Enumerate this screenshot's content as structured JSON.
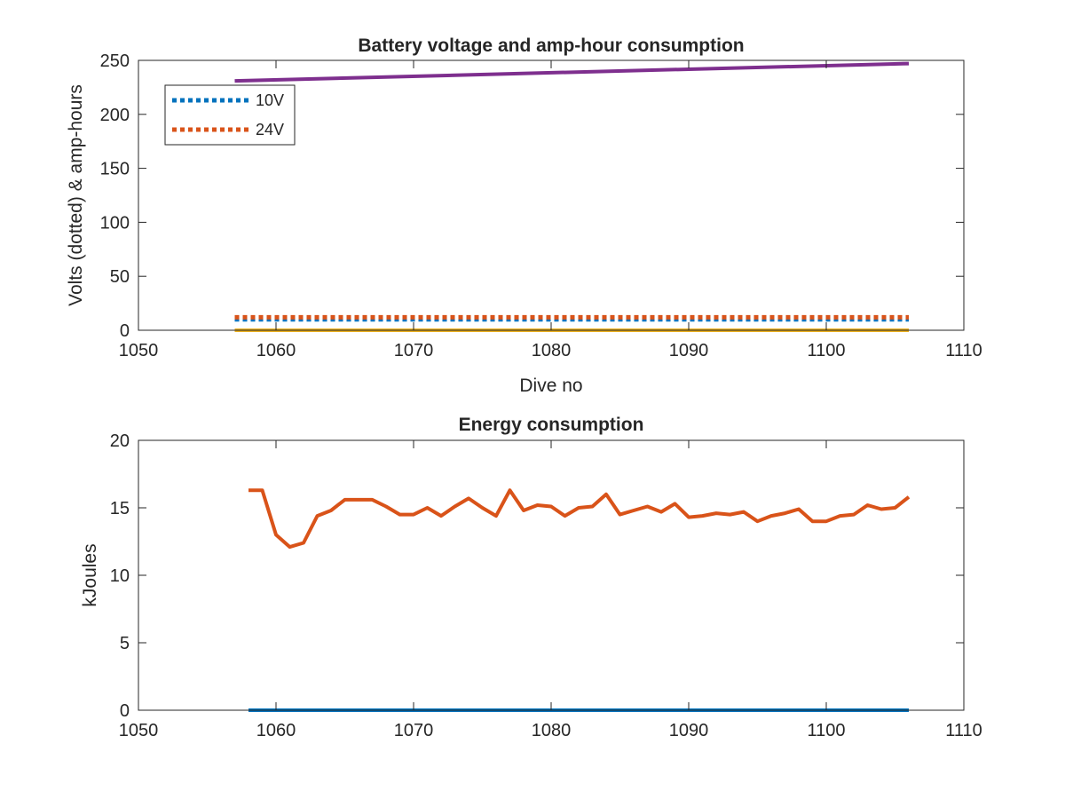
{
  "chart_data": [
    {
      "type": "line",
      "title": "Battery voltage and amp-hour consumption",
      "xlabel": "Dive no",
      "ylabel": "Volts (dotted) & amp-hours",
      "xlim": [
        1050,
        1110
      ],
      "ylim": [
        0,
        250
      ],
      "xticks": [
        "1050",
        "1060",
        "1070",
        "1080",
        "1090",
        "1100",
        "1110"
      ],
      "yticks": [
        "0",
        "50",
        "100",
        "150",
        "200",
        "250"
      ],
      "grid": false,
      "legend_location": "top-left",
      "series": [
        {
          "name": "10V",
          "color": "#0072BD",
          "style": "dotted",
          "x": [
            1057,
            1106
          ],
          "y": [
            10,
            10
          ]
        },
        {
          "name": "24V",
          "color": "#D95319",
          "style": "dotted",
          "x": [
            1057,
            1106
          ],
          "y": [
            12,
            12
          ]
        },
        {
          "color": "#EDB120",
          "style": "solid",
          "x": [
            1057,
            1106
          ],
          "y": [
            0,
            0
          ]
        },
        {
          "color": "#7E2F8E",
          "style": "solid",
          "x": [
            1057,
            1106
          ],
          "y": [
            231,
            247
          ]
        }
      ]
    },
    {
      "type": "line",
      "title": "Energy consumption",
      "xlabel": "",
      "ylabel": "kJoules",
      "xlim": [
        1050,
        1110
      ],
      "ylim": [
        0,
        20
      ],
      "xticks": [
        "1050",
        "1060",
        "1070",
        "1080",
        "1090",
        "1100",
        "1110"
      ],
      "yticks": [
        "0",
        "5",
        "10",
        "15",
        "20"
      ],
      "grid": false,
      "series": [
        {
          "color": "#0072BD",
          "style": "solid",
          "x": [
            1058,
            1106
          ],
          "y": [
            0,
            0
          ]
        },
        {
          "color": "#D95319",
          "style": "solid",
          "x": [
            1058,
            1059,
            1060,
            1061,
            1062,
            1063,
            1064,
            1065,
            1066,
            1067,
            1068,
            1069,
            1070,
            1071,
            1072,
            1073,
            1074,
            1075,
            1076,
            1077,
            1078,
            1079,
            1080,
            1081,
            1082,
            1083,
            1084,
            1085,
            1086,
            1087,
            1088,
            1089,
            1090,
            1091,
            1092,
            1093,
            1094,
            1095,
            1096,
            1097,
            1098,
            1099,
            1100,
            1101,
            1102,
            1103,
            1104,
            1105,
            1106
          ],
          "y": [
            16.3,
            16.3,
            13.0,
            12.1,
            12.4,
            14.4,
            14.8,
            15.6,
            15.6,
            15.6,
            15.1,
            14.5,
            14.5,
            15.0,
            14.4,
            15.1,
            15.7,
            15.0,
            14.4,
            16.3,
            14.8,
            15.2,
            15.1,
            14.4,
            15.0,
            15.1,
            16.0,
            14.5,
            14.8,
            15.1,
            14.7,
            15.3,
            14.3,
            14.4,
            14.6,
            14.5,
            14.7,
            14.0,
            14.4,
            14.6,
            14.9,
            14.0,
            14.0,
            14.4,
            14.5,
            15.2,
            14.9,
            15.0,
            15.8
          ]
        }
      ]
    }
  ]
}
